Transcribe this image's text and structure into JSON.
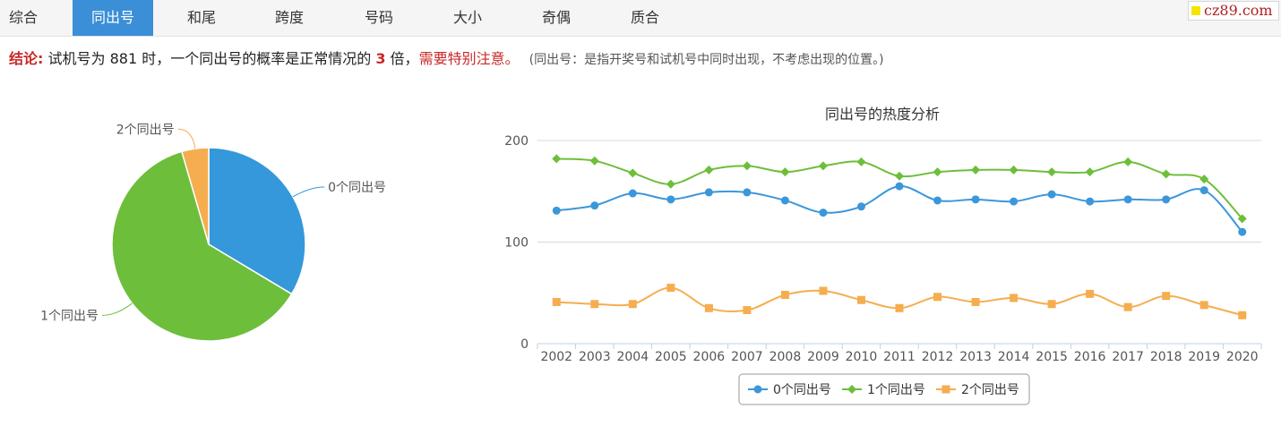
{
  "tabs": [
    "综合",
    "同出号",
    "和尾",
    "跨度",
    "号码",
    "大小",
    "奇偶",
    "质合"
  ],
  "active_tab": 1,
  "logo": {
    "text": "cz89.com"
  },
  "conclusion": {
    "label": "结论:",
    "part1": "试机号为 881 时，一个同出号的概率是正常情况的",
    "multiple": "3",
    "part2": "倍，",
    "warning": "需要特别注意。",
    "note": "(同出号：是指开奖号和试机号中同时出现，不考虑出现的位置。)"
  },
  "chart_data": [
    {
      "type": "pie",
      "categories": [
        "0个同出号",
        "1个同出号",
        "2个同出号"
      ],
      "values": [
        33.6,
        61.9,
        4.5
      ],
      "colors": [
        "#3498db",
        "#6dbe3b",
        "#f5ad4f"
      ]
    },
    {
      "type": "line",
      "title": "同出号的热度分析",
      "categories": [
        "2002",
        "2003",
        "2004",
        "2005",
        "2006",
        "2007",
        "2008",
        "2009",
        "2010",
        "2011",
        "2012",
        "2013",
        "2014",
        "2015",
        "2016",
        "2017",
        "2018",
        "2019",
        "2020"
      ],
      "yticks": [
        0,
        100,
        200
      ],
      "ylim": [
        0,
        200
      ],
      "grid": true,
      "legend": "bottom-center",
      "series": [
        {
          "name": "0个同出号",
          "color": "#3c97da",
          "marker": "circle",
          "values": [
            131,
            136,
            148,
            142,
            149,
            149,
            141,
            129,
            135,
            155,
            141,
            142,
            140,
            147,
            140,
            142,
            142,
            151,
            110
          ]
        },
        {
          "name": "1个同出号",
          "color": "#6dbe3b",
          "marker": "diamond",
          "values": [
            182,
            180,
            168,
            157,
            171,
            175,
            169,
            175,
            179,
            165,
            169,
            171,
            171,
            169,
            169,
            179,
            167,
            162,
            123
          ]
        },
        {
          "name": "2个同出号",
          "color": "#f5ad4f",
          "marker": "square",
          "values": [
            41,
            39,
            39,
            55,
            35,
            33,
            48,
            52,
            43,
            35,
            46,
            41,
            45,
            39,
            49,
            36,
            47,
            38,
            28
          ]
        }
      ]
    }
  ]
}
